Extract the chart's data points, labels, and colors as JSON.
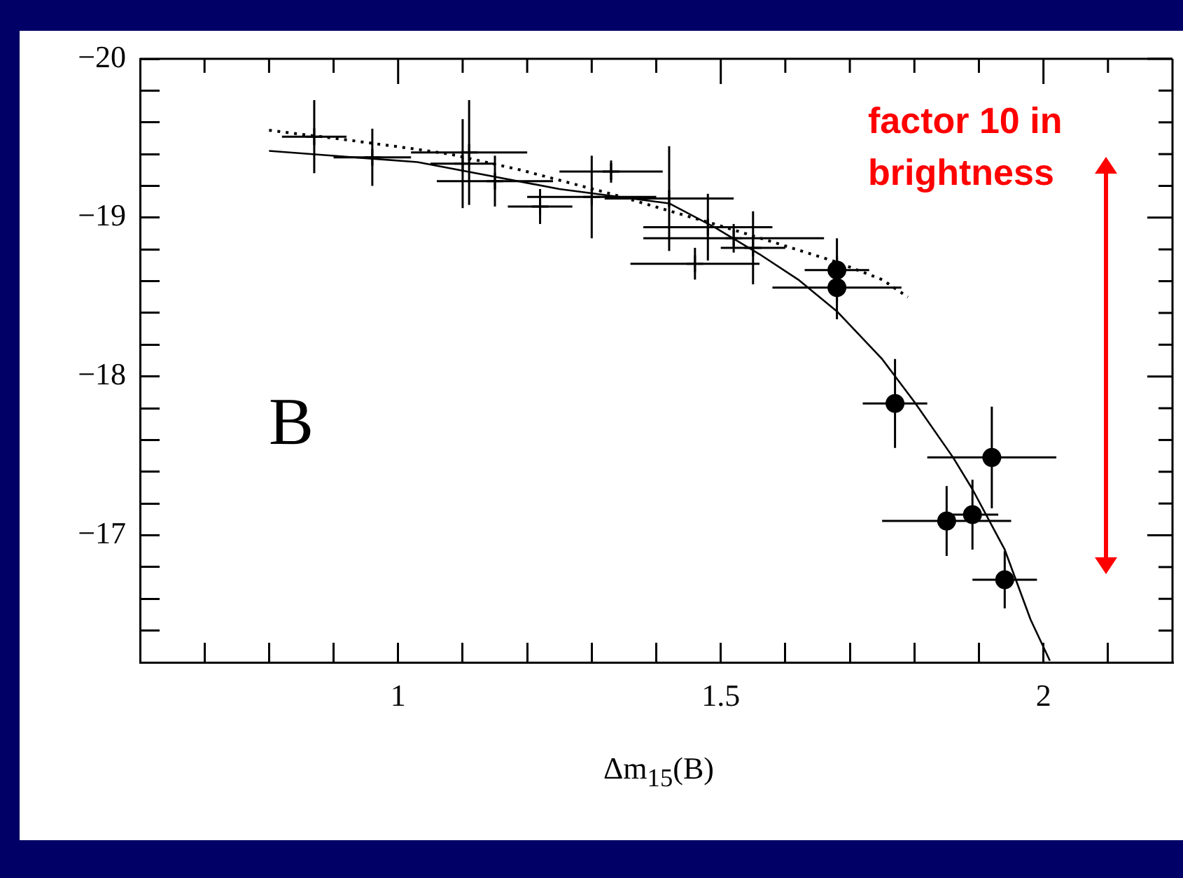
{
  "chart_data": {
    "type": "scatter",
    "xlabel": "Δm$_{15}$(B)",
    "xlim": [
      0.6,
      2.2
    ],
    "xticks": [
      {
        "value": 0.7,
        "label": null
      },
      {
        "value": 0.8,
        "label": null
      },
      {
        "value": 0.9,
        "label": null
      },
      1,
      {
        "value": 1.1,
        "label": null
      },
      {
        "value": 1.2,
        "label": null
      },
      {
        "value": 1.3,
        "label": null
      },
      {
        "value": 1.4,
        "label": null
      },
      1.5,
      {
        "value": 1.6,
        "label": null
      },
      {
        "value": 1.7,
        "label": null
      },
      {
        "value": 1.8,
        "label": null
      },
      {
        "value": 1.9,
        "label": null
      },
      2,
      {
        "value": 2.1,
        "label": null
      }
    ],
    "ylim": [
      -16.2,
      -20
    ],
    "yticks": [
      {
        "value": -20,
        "label": "−20"
      },
      {
        "value": -19.8,
        "label": null
      },
      {
        "value": -19.6,
        "label": null
      },
      {
        "value": -19.4,
        "label": null
      },
      {
        "value": -19.2,
        "label": null
      },
      {
        "value": -19,
        "label": "−19"
      },
      {
        "value": -18.8,
        "label": null
      },
      {
        "value": -18.6,
        "label": null
      },
      {
        "value": -18.4,
        "label": null
      },
      {
        "value": -18.2,
        "label": null
      },
      {
        "value": -18,
        "label": "−18"
      },
      {
        "value": -17.8,
        "label": null
      },
      {
        "value": -17.6,
        "label": null
      },
      {
        "value": -17.4,
        "label": null
      },
      {
        "value": -17.2,
        "label": null
      },
      {
        "value": -17,
        "label": "−17"
      },
      {
        "value": -16.8,
        "label": null
      },
      {
        "value": -16.6,
        "label": null
      },
      {
        "value": -16.4,
        "label": null
      }
    ],
    "grid": false,
    "legend": false,
    "annotations": [
      "B",
      "factor 10 in brightness"
    ],
    "series": [
      {
        "type": "scatter",
        "marker": "cross",
        "color": "#000000",
        "x": [
          0.87,
          0.96,
          1.1,
          1.11,
          1.15,
          1.22,
          1.3,
          1.33,
          1.42,
          1.48,
          1.55,
          1.46,
          1.52
        ],
        "values": [
          -19.51,
          -19.38,
          -19.34,
          -19.41,
          -19.23,
          -19.07,
          -19.13,
          -19.29,
          -19.12,
          -18.94,
          -18.81,
          -18.71,
          -18.87
        ],
        "errors": [
          0.23,
          0.18,
          0.28,
          0.33,
          0.16,
          0.11,
          0.26,
          0.07,
          0.33,
          0.21,
          0.23,
          0.1,
          0.09
        ],
        "xerrors": [
          0.05,
          0.06,
          0.05,
          0.09,
          0.09,
          0.05,
          0.1,
          0.08,
          0.1,
          0.1,
          0.05,
          0.1,
          0.14
        ]
      },
      {
        "type": "scatter",
        "marker": "circle",
        "color": "#000000",
        "x": [
          1.68,
          1.68,
          1.77,
          1.92,
          1.85,
          1.89,
          1.94
        ],
        "values": [
          -18.67,
          -18.56,
          -17.83,
          -17.49,
          -17.09,
          -17.13,
          -16.72
        ],
        "errors": [
          0.2,
          0.2,
          0.28,
          0.32,
          0.22,
          0.22,
          0.18
        ],
        "xerrors": [
          0.05,
          0.1,
          0.05,
          0.1,
          0.1,
          0.04,
          0.05
        ]
      },
      {
        "type": "line",
        "marker": "none",
        "line_style": "solid",
        "color": "#000000",
        "x": [
          0.8,
          1.03,
          1.25,
          1.42,
          1.49,
          1.56,
          1.62,
          1.68,
          1.75,
          1.8,
          1.86,
          1.89,
          1.94,
          1.98,
          2.01
        ],
        "values": [
          -19.42,
          -19.35,
          -19.18,
          -19.09,
          -18.94,
          -18.77,
          -18.61,
          -18.41,
          -18.11,
          -17.84,
          -17.49,
          -17.29,
          -16.91,
          -16.47,
          -16.21
        ]
      },
      {
        "type": "line",
        "marker": "none",
        "line_style": "dotted",
        "color": "#000000",
        "x": [
          0.8,
          0.92,
          1.03,
          1.08,
          1.19,
          1.33,
          1.49,
          1.57,
          1.68,
          1.75,
          1.79
        ],
        "values": [
          -19.55,
          -19.49,
          -19.43,
          -19.4,
          -19.3,
          -19.15,
          -18.96,
          -18.86,
          -18.72,
          -18.61,
          -18.5
        ]
      }
    ]
  }
}
